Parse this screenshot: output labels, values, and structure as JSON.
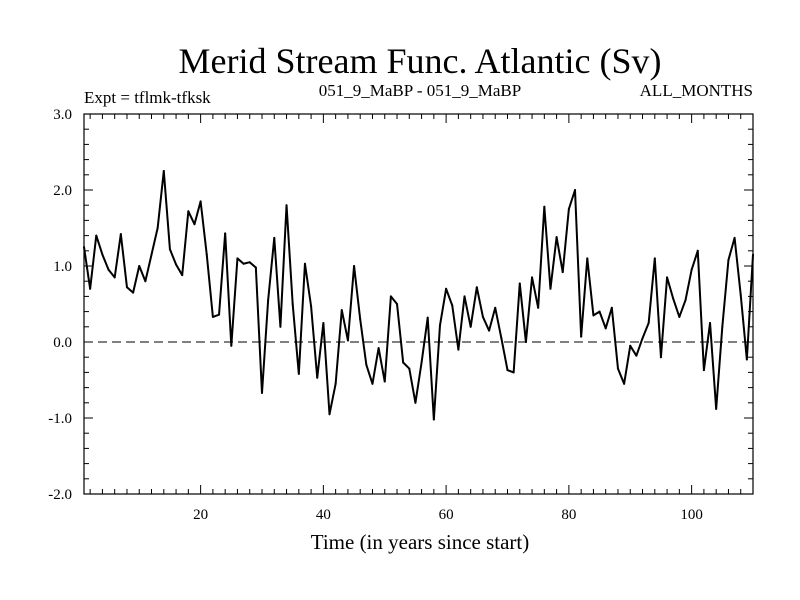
{
  "chart_data": {
    "type": "line",
    "title": "Merid Stream Func. Atlantic (Sv)",
    "subtitle_left": "Expt = tflmk-tfksk",
    "subtitle_center": "051_9_MaBP - 051_9_MaBP",
    "subtitle_right": "ALL_MONTHS",
    "xlabel": "Time (in years since start)",
    "ylabel": "",
    "xlim": [
      1,
      110
    ],
    "ylim": [
      -2.0,
      3.0
    ],
    "x_ticks": [
      20,
      40,
      60,
      80,
      100
    ],
    "x_tick_labels": [
      "20",
      "40",
      "60",
      "80",
      "100"
    ],
    "y_ticks": [
      -2.0,
      -1.0,
      0.0,
      1.0,
      2.0,
      3.0
    ],
    "y_tick_labels": [
      "-2.0",
      "-1.0",
      "0.0",
      "1.0",
      "2.0",
      "3.0"
    ],
    "reference_line": {
      "y": 0.0,
      "style": "dashed"
    },
    "series": [
      {
        "name": "Merid Stream Func. Atlantic",
        "color": "#000000",
        "x": [
          1,
          2,
          3,
          4,
          5,
          6,
          7,
          8,
          9,
          10,
          11,
          12,
          13,
          14,
          15,
          16,
          17,
          18,
          19,
          20,
          21,
          22,
          23,
          24,
          25,
          26,
          27,
          28,
          29,
          30,
          31,
          32,
          33,
          34,
          35,
          36,
          37,
          38,
          39,
          40,
          41,
          42,
          43,
          44,
          45,
          46,
          47,
          48,
          49,
          50,
          51,
          52,
          53,
          54,
          55,
          56,
          57,
          58,
          59,
          60,
          61,
          62,
          63,
          64,
          65,
          66,
          67,
          68,
          69,
          70,
          71,
          72,
          73,
          74,
          75,
          76,
          77,
          78,
          79,
          80,
          81,
          82,
          83,
          84,
          85,
          86,
          87,
          88,
          89,
          90,
          91,
          92,
          93,
          94,
          95,
          96,
          97,
          98,
          99,
          100,
          101,
          102,
          103,
          104,
          105,
          106,
          107,
          108,
          109,
          110
        ],
        "values": [
          1.25,
          0.7,
          1.4,
          1.15,
          0.95,
          0.85,
          1.42,
          0.72,
          0.65,
          1.0,
          0.8,
          1.15,
          1.5,
          2.25,
          1.22,
          1.02,
          0.88,
          1.72,
          1.55,
          1.85,
          1.15,
          0.33,
          0.36,
          1.43,
          -0.05,
          1.1,
          1.03,
          1.05,
          0.98,
          -0.67,
          0.55,
          1.37,
          0.2,
          1.8,
          0.5,
          -0.42,
          1.03,
          0.47,
          -0.47,
          0.25,
          -0.95,
          -0.55,
          0.42,
          0.02,
          1.0,
          0.3,
          -0.3,
          -0.55,
          -0.08,
          -0.52,
          0.6,
          0.5,
          -0.27,
          -0.35,
          -0.8,
          -0.27,
          0.32,
          -1.02,
          0.22,
          0.7,
          0.48,
          -0.1,
          0.6,
          0.2,
          0.72,
          0.33,
          0.15,
          0.45,
          0.05,
          -0.37,
          -0.4,
          0.77,
          0.0,
          0.85,
          0.45,
          1.78,
          0.7,
          1.38,
          0.92,
          1.75,
          2.0,
          0.07,
          1.1,
          0.35,
          0.4,
          0.18,
          0.45,
          -0.35,
          -0.55,
          -0.05,
          -0.18,
          0.05,
          0.25,
          1.1,
          -0.2,
          0.85,
          0.57,
          0.33,
          0.55,
          0.95,
          1.2,
          -0.37,
          0.25,
          -0.88,
          0.2,
          1.08,
          1.37,
          0.62,
          -0.23,
          1.15
        ]
      }
    ]
  }
}
